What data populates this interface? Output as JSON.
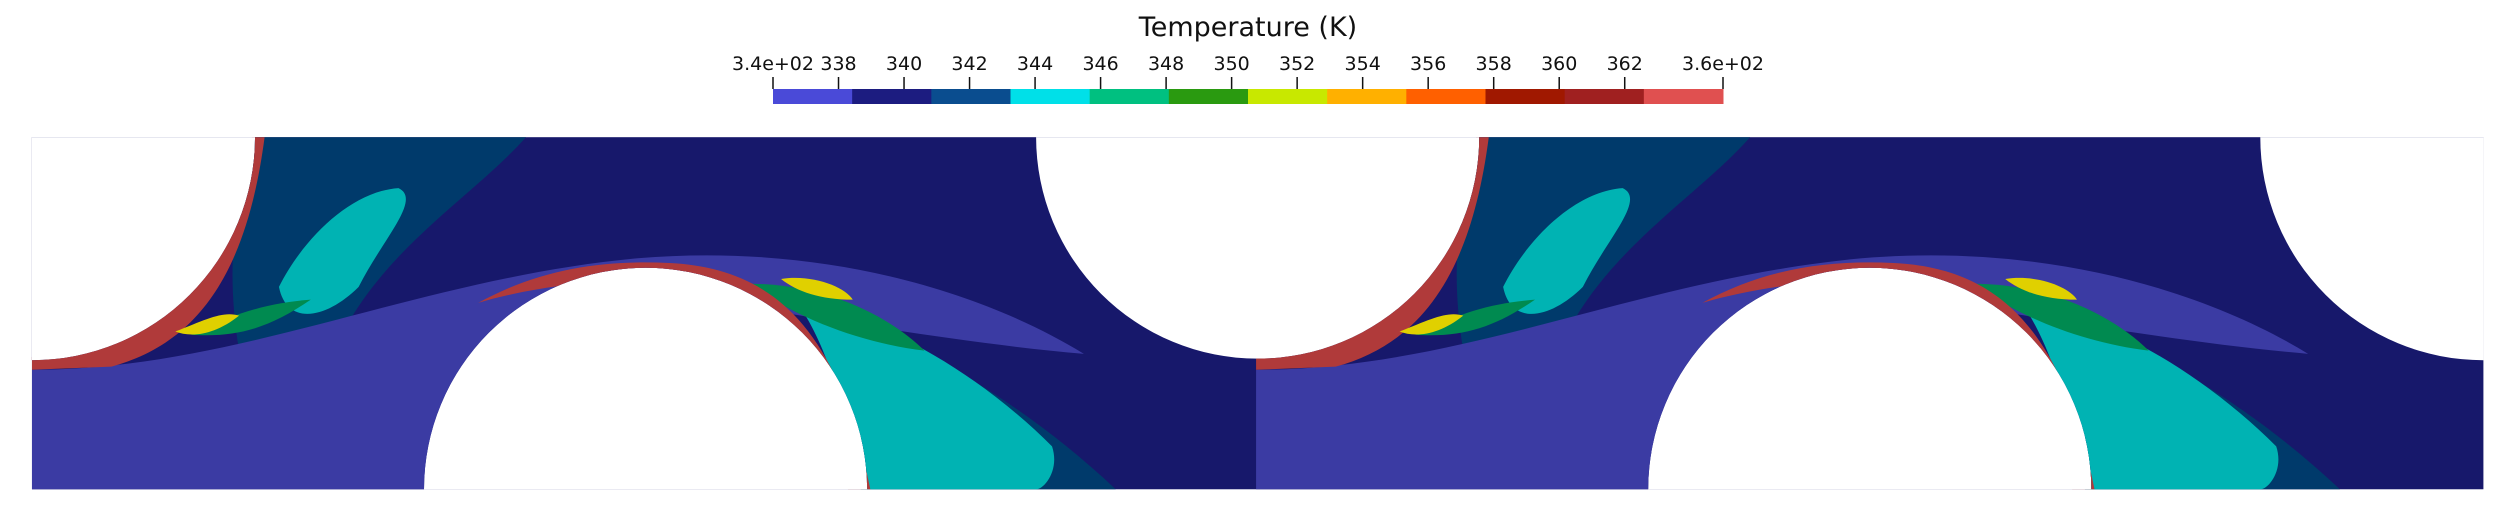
{
  "colorbar": {
    "title": "Temperature (K)",
    "range": [
      336,
      365
    ],
    "ticks": [
      {
        "value": 336,
        "label": "3.4e+02"
      },
      338,
      340,
      342,
      344,
      346,
      348,
      350,
      352,
      354,
      356,
      358,
      360,
      362,
      {
        "value": 365,
        "label": "3.6e+02"
      }
    ],
    "colors": [
      "#4a4ad8",
      "#1c1c80",
      "#0a4d8f",
      "#00e0e8",
      "#00c080",
      "#2a9a10",
      "#c8e800",
      "#ffb000",
      "#ff6000",
      "#a01800",
      "#a02020",
      "#e05050"
    ]
  }
}
